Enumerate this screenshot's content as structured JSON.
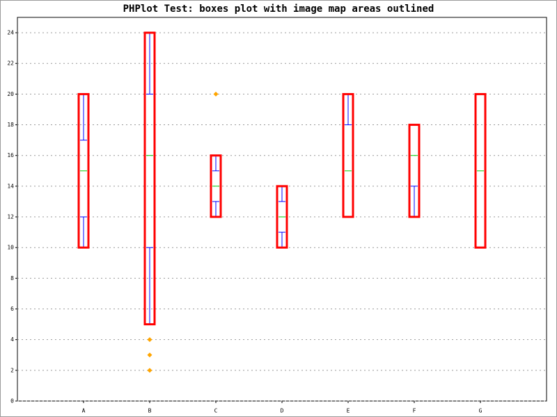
{
  "chart_data": {
    "type": "box",
    "title": "PHPlot Test: boxes plot with image map areas outlined",
    "categories": [
      "A",
      "B",
      "C",
      "D",
      "E",
      "F",
      "G"
    ],
    "min": [
      10,
      5,
      12,
      10,
      12,
      12,
      10
    ],
    "q1": [
      12,
      10,
      13,
      11,
      12,
      14,
      10
    ],
    "median": [
      15,
      16,
      14,
      12,
      15,
      16,
      15
    ],
    "q3": [
      17,
      20,
      15,
      13,
      18,
      18,
      20
    ],
    "max": [
      20,
      24,
      16,
      14,
      20,
      18,
      20
    ],
    "outliers": [
      [],
      [
        2,
        3,
        4
      ],
      [
        20
      ],
      [],
      [],
      [],
      []
    ],
    "whisker_color": "#0000ff",
    "median_color": "#00cc00",
    "outlier_color": "#ffa500",
    "area_color": "#ff0000",
    "ylim": [
      0,
      25
    ],
    "yticks": [
      0,
      2,
      4,
      6,
      8,
      10,
      12,
      14,
      16,
      18,
      20,
      22,
      24
    ],
    "grid": true
  }
}
